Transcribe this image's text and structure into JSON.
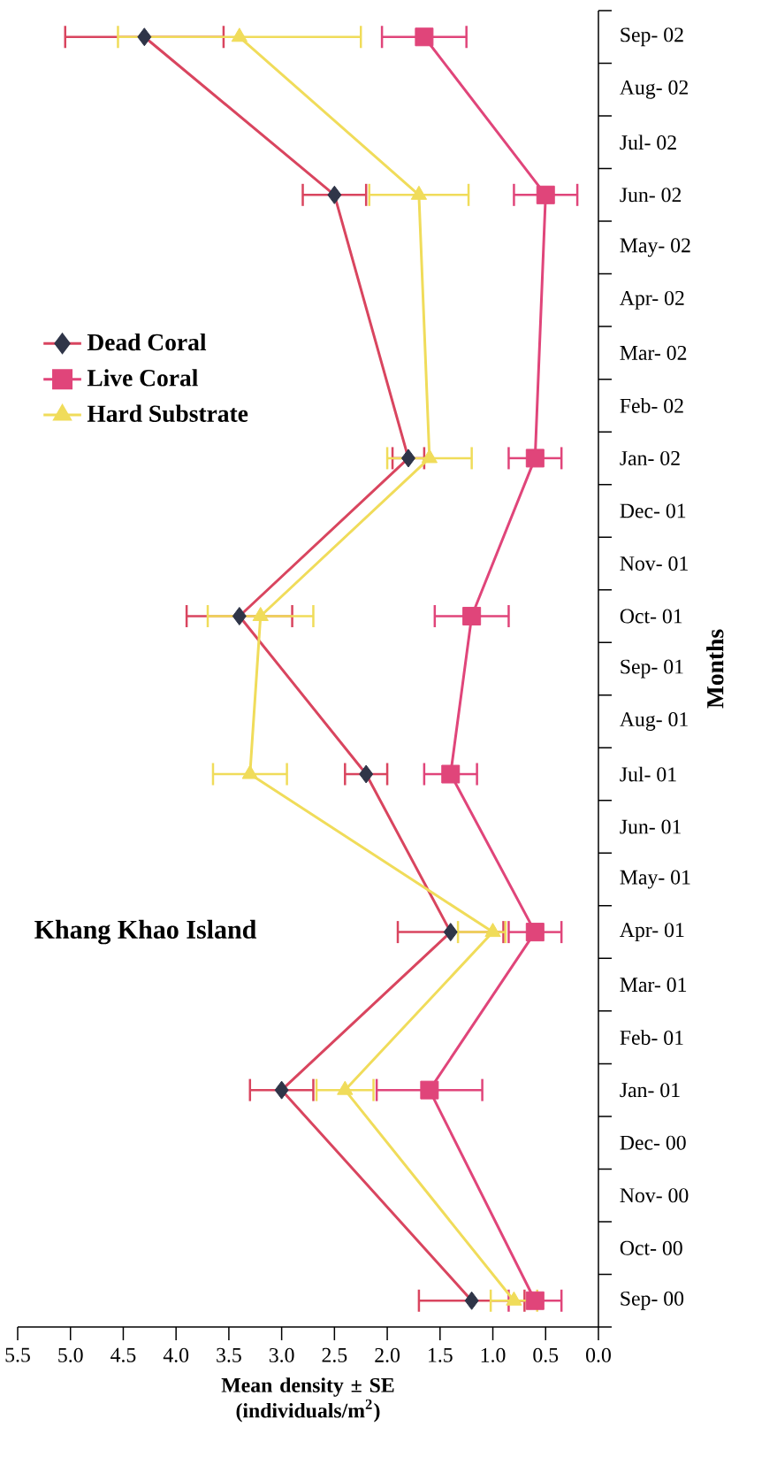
{
  "chart_data": {
    "type": "line",
    "orientation": "horizontal",
    "title": "Khang Khao Island",
    "ylabel": "Months",
    "xlabel": "Mean density ± SE (individuals/m$^{2}$)",
    "ylim": [
      "2000-08-16",
      "2002-09-16"
    ],
    "yticks": [
      {
        "value": "2000-09",
        "label": "Sep- 00"
      },
      {
        "value": "2000-10",
        "label": "Oct- 00"
      },
      {
        "value": "2000-11",
        "label": "Nov- 00"
      },
      {
        "value": "2000-12",
        "label": "Dec- 00"
      },
      {
        "value": "2001-01",
        "label": "Jan- 01"
      },
      {
        "value": "2001-02",
        "label": "Feb- 01"
      },
      {
        "value": "2001-03",
        "label": "Mar- 01"
      },
      {
        "value": "2001-04",
        "label": "Apr- 01"
      },
      {
        "value": "2001-05",
        "label": "May- 01"
      },
      {
        "value": "2001-06",
        "label": "Jun- 01"
      },
      {
        "value": "2001-07",
        "label": "Jul- 01"
      },
      {
        "value": "2001-08",
        "label": "Aug- 01"
      },
      {
        "value": "2001-09",
        "label": "Sep- 01"
      },
      {
        "value": "2001-10",
        "label": "Oct- 01"
      },
      {
        "value": "2001-11",
        "label": "Nov- 01"
      },
      {
        "value": "2001-12",
        "label": "Dec- 01"
      },
      {
        "value": "2002-01",
        "label": "Jan- 02"
      },
      {
        "value": "2002-02",
        "label": "Feb- 02"
      },
      {
        "value": "2002-03",
        "label": "Mar- 02"
      },
      {
        "value": "2002-04",
        "label": "Apr- 02"
      },
      {
        "value": "2002-05",
        "label": "May- 02"
      },
      {
        "value": "2002-06",
        "label": "Jun- 02"
      },
      {
        "value": "2002-07",
        "label": "Jul- 02"
      },
      {
        "value": "2002-08",
        "label": "Aug- 02"
      },
      {
        "value": "2002-09",
        "label": "Sep- 02"
      }
    ],
    "xlim": [
      5.5,
      0
    ],
    "xticks": [
      {
        "value": 0,
        "label": "0.0"
      },
      {
        "value": 0.5,
        "label": "0.5"
      },
      {
        "value": 1,
        "label": "1.0"
      },
      {
        "value": 1.5,
        "label": "1.5"
      },
      {
        "value": 2,
        "label": "2.0"
      },
      {
        "value": 2.5,
        "label": "2.5"
      },
      {
        "value": 3,
        "label": "3.0"
      },
      {
        "value": 3.5,
        "label": "3.5"
      },
      {
        "value": 4,
        "label": "4.0"
      },
      {
        "value": 4.5,
        "label": "4.5"
      },
      {
        "value": 5,
        "label": "5.0"
      },
      {
        "value": 5.5,
        "label": "5.5"
      }
    ],
    "legend": "top left",
    "grid": false,
    "series": [
      {
        "name": "Dead Coral",
        "color": "#d9455f",
        "marker": "diamond",
        "colors": [
          "#2f3548",
          "#2f3548",
          "#2f3548",
          "#2f3548",
          "#2f3548",
          "#2f3548",
          "#2f3548",
          "#2f3548"
        ],
        "x": [
          "2000-09",
          "2001-01",
          "2001-04",
          "2001-07",
          "2001-10",
          "2002-01",
          "2002-06",
          "2002-09"
        ],
        "values": [
          1.2,
          3.0,
          1.4,
          2.2,
          3.4,
          1.8,
          2.5,
          4.3
        ],
        "errors": [
          0.5,
          0.3,
          0.5,
          0.2,
          0.5,
          0.15,
          0.3,
          0.75
        ]
      },
      {
        "name": "Live Coral",
        "color": "#e0457a",
        "marker": "square",
        "colors": [
          "#e0457a",
          "#e0457a",
          "#e0457a",
          "#e0457a",
          "#e0457a",
          "#e0457a",
          "#e0457a",
          "#e0457a"
        ],
        "x": [
          "2000-09",
          "2001-01",
          "2001-04",
          "2001-07",
          "2001-10",
          "2002-01",
          "2002-06",
          "2002-09"
        ],
        "values": [
          0.6,
          1.6,
          0.6,
          1.4,
          1.2,
          0.6,
          0.5,
          1.65
        ],
        "errors": [
          0.25,
          0.5,
          0.25,
          0.25,
          0.35,
          0.25,
          0.3,
          0.4
        ]
      },
      {
        "name": "Hard Substrate",
        "color": "#f0dc5a",
        "marker": "triangle",
        "colors": [
          "#f0dc5a",
          "#f0dc5a",
          "#f0dc5a",
          "#f0dc5a",
          "#f0dc5a",
          "#f0dc5a",
          "#f0dc5a",
          "#f0dc5a"
        ],
        "x": [
          "2000-09",
          "2001-01",
          "2001-04",
          "2001-07",
          "2001-10",
          "2002-01",
          "2002-06",
          "2002-09"
        ],
        "values": [
          0.8,
          2.4,
          1.0,
          3.3,
          3.2,
          1.6,
          1.7,
          3.4
        ],
        "errors": [
          0.22,
          0.27,
          [
            0.88,
            1.33
          ],
          0.35,
          0.5,
          0.4,
          0.47,
          1.15
        ]
      }
    ]
  }
}
